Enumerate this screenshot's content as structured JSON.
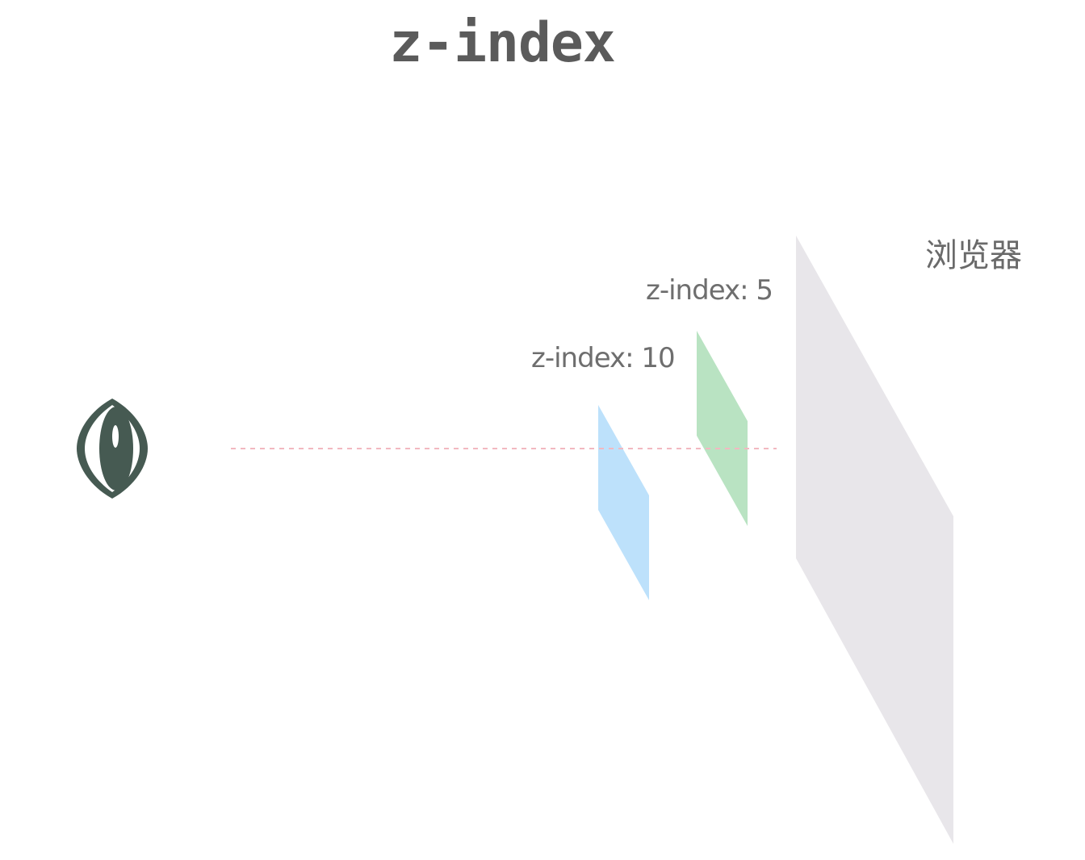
{
  "title": "z-index",
  "browser_label": "浏览器",
  "layers": [
    {
      "label": "z-index: 5",
      "color": "#b9e3c2"
    },
    {
      "label": "z-index: 10",
      "color": "#bde1fb"
    }
  ],
  "browser_plane_color": "#e8e6ea",
  "eye_color": "#465a52",
  "sight_line_color": "#f2b8c0",
  "icons": [
    "eye-icon"
  ]
}
